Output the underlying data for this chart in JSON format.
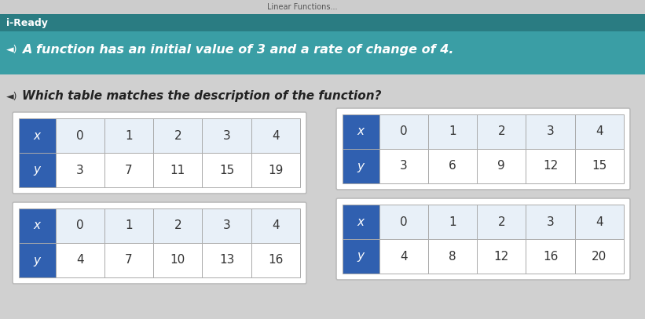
{
  "header_bg": "#3A9EA5",
  "header_stripe_bg": "#2A7C82",
  "page_bg": "#D0D0D0",
  "card_bg": "#FFFFFF",
  "card_border": "#BBBBBB",
  "cell_bg_light": "#E8F0F8",
  "label_blue": "#3060B0",
  "label_text": "#FFFFFF",
  "cell_text": "#333333",
  "iready_text": "i-Ready",
  "linear_text": "Linear Functions...",
  "question_text": "A function has an initial value of 3 and a rate of change of 4.",
  "sub_question_text": "Which table matches the description of the function?",
  "tables": [
    {
      "x_row": [
        0,
        1,
        2,
        3,
        4
      ],
      "y_row": [
        3,
        7,
        11,
        15,
        19
      ]
    },
    {
      "x_row": [
        0,
        1,
        2,
        3,
        4
      ],
      "y_row": [
        3,
        6,
        9,
        12,
        15
      ]
    },
    {
      "x_row": [
        0,
        1,
        2,
        3,
        4
      ],
      "y_row": [
        4,
        7,
        10,
        13,
        16
      ]
    },
    {
      "x_row": [
        0,
        1,
        2,
        3,
        4
      ],
      "y_row": [
        4,
        8,
        12,
        16,
        20
      ]
    }
  ]
}
